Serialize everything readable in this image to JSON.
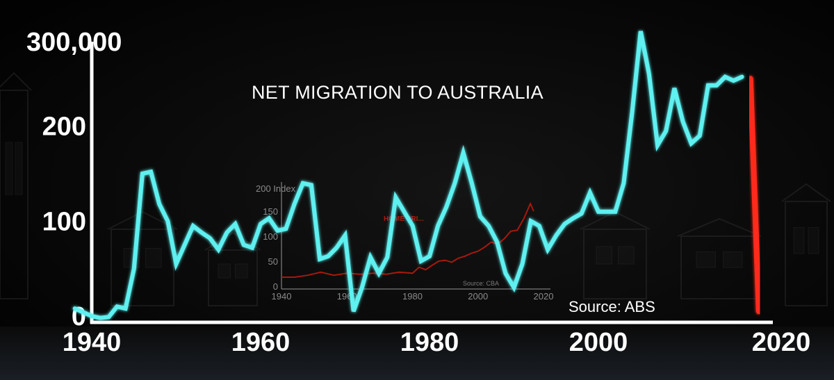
{
  "chart_data": [
    {
      "type": "line",
      "title": "NET MIGRATION TO AUSTRALIA",
      "source": "Source: ABS",
      "y_axis_top_label": "300,000",
      "y_ticks": [
        "0",
        "100",
        "200"
      ],
      "x_ticks": [
        "1940",
        "1960",
        "1980",
        "2000",
        "2020"
      ],
      "xlim": [
        1940,
        2020
      ],
      "ylim": [
        0,
        300000
      ],
      "grid": false,
      "series": [
        {
          "color": "#5ff0f0",
          "x": [
            1938,
            1939,
            1940,
            1941,
            1942,
            1943,
            1944,
            1945,
            1946,
            1947,
            1948,
            1949,
            1950,
            1951,
            1952,
            1953,
            1954,
            1955,
            1956,
            1957,
            1958,
            1959,
            1960,
            1961,
            1962,
            1963,
            1964,
            1965,
            1966,
            1967,
            1968,
            1969,
            1970,
            1971,
            1972,
            1973,
            1974,
            1975,
            1976,
            1977,
            1978,
            1979,
            1980,
            1981,
            1982,
            1983,
            1984,
            1985,
            1986,
            1987,
            1988,
            1989,
            1990,
            1991,
            1992,
            1993,
            1994,
            1995,
            1996,
            1997,
            1998,
            1999,
            2000,
            2001,
            2002,
            2003,
            2004,
            2005,
            2006,
            2007,
            2008,
            2009,
            2010,
            2011,
            2012,
            2013,
            2014,
            2015,
            2016,
            2017
          ],
          "values": [
            8000,
            4000,
            0,
            -2000,
            -1000,
            10000,
            8000,
            50000,
            150000,
            152000,
            118000,
            100000,
            55000,
            75000,
            95000,
            88000,
            82000,
            70000,
            88000,
            97000,
            75000,
            72000,
            97000,
            103000,
            90000,
            92000,
            118000,
            140000,
            138000,
            60000,
            63000,
            72000,
            85000,
            5000,
            30000,
            62000,
            45000,
            62000,
            125000,
            110000,
            95000,
            58000,
            63000,
            95000,
            115000,
            140000,
            172000,
            140000,
            105000,
            95000,
            78000,
            45000,
            30000,
            55000,
            100000,
            95000,
            70000,
            85000,
            97000,
            103000,
            108000,
            130000,
            110000,
            110000,
            110000,
            140000,
            215000,
            300000,
            255000,
            180000,
            195000,
            240000,
            205000,
            182000,
            190000,
            243000,
            243000,
            252000,
            248000,
            252000
          ]
        },
        {
          "color": "#ff2a1a",
          "x": [
            2018,
            2019
          ],
          "values": [
            250000,
            5000
          ]
        }
      ]
    },
    {
      "type": "line",
      "y_axis_top_label": "200 Index",
      "y_ticks": [
        "150",
        "100",
        "50",
        "0"
      ],
      "x_ticks": [
        "1940",
        "1960",
        "1980",
        "2000",
        "2020"
      ],
      "xlim": [
        1940,
        2020
      ],
      "ylim": [
        0,
        200
      ],
      "series_label": "HOME PRI...",
      "source": "Source: CBA",
      "series": [
        {
          "color": "#a8180e",
          "x": [
            1940,
            1944,
            1948,
            1952,
            1956,
            1960,
            1964,
            1968,
            1972,
            1976,
            1980,
            1982,
            1984,
            1986,
            1988,
            1990,
            1992,
            1994,
            1996,
            1998,
            2000,
            2002,
            2004,
            2006,
            2008,
            2010,
            2012,
            2014,
            2016,
            2017
          ],
          "values": [
            18,
            18,
            22,
            28,
            22,
            26,
            24,
            26,
            24,
            28,
            26,
            38,
            33,
            42,
            50,
            52,
            48,
            56,
            60,
            66,
            70,
            78,
            88,
            84,
            95,
            110,
            112,
            135,
            165,
            150
          ]
        }
      ]
    }
  ]
}
